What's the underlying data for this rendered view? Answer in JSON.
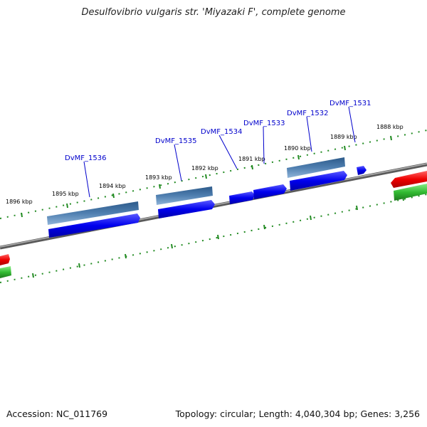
{
  "title": "Desulfovibrio vulgaris str. 'Miyazaki F', complete genome",
  "accession": "Accession: NC_011769",
  "topology": "Topology: circular; Length: 4,040,304 bp; Genes: 3,256",
  "scale_labels": [
    "1896 kbp",
    "1895 kbp",
    "1894 kbp",
    "1893 kbp",
    "1892 kbp",
    "1891 kbp",
    "1890 kbp",
    "1889 kbp",
    "1888 kbp"
  ],
  "gene_labels": [
    "DvMF_1536",
    "DvMF_1535",
    "DvMF_1534",
    "DvMF_1533",
    "DvMF_1532",
    "DvMF_1531"
  ],
  "colors": {
    "backbone": "#808080",
    "gene_forward": "#0000ee",
    "gene_reference": "#4f7fb0",
    "track_red": "#ee0000",
    "track_green": "#33bb33",
    "tick": "#228b22",
    "label_link": "#0000cc"
  }
}
